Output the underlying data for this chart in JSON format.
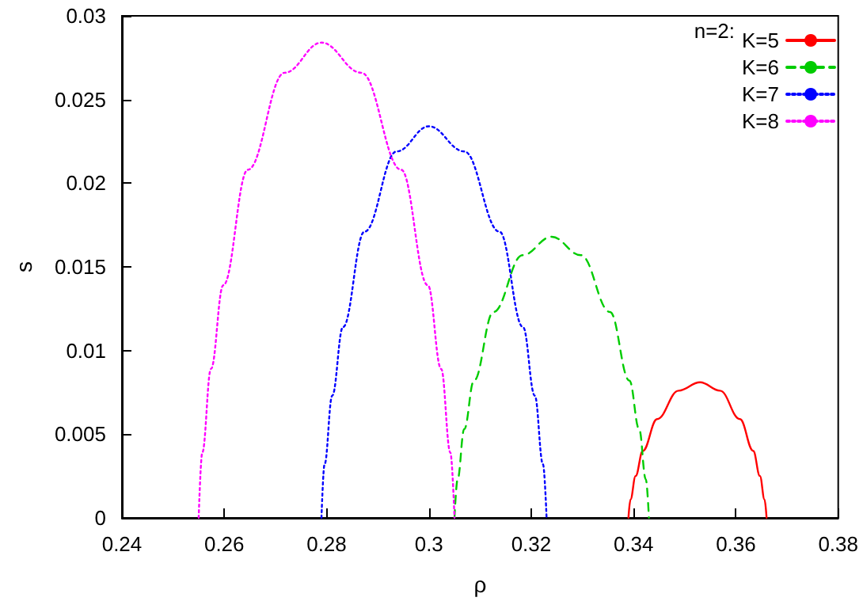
{
  "chart_data": {
    "type": "line",
    "xlabel": "ρ",
    "ylabel": "s",
    "legend_title": "n=2:",
    "legend": "top right",
    "grid": false,
    "marker": "none",
    "xlim": [
      0.24,
      0.38
    ],
    "xticks": [
      0.24,
      0.26,
      0.28,
      0.3,
      0.32,
      0.34,
      0.36,
      0.38
    ],
    "ylim": [
      0,
      0.03
    ],
    "yticks": [
      0,
      0.005,
      0.01,
      0.015,
      0.02,
      0.025,
      0.03
    ],
    "series": [
      {
        "name": "K=5",
        "color": "#ff0000",
        "line_style": "solid",
        "x": [
          0.339,
          0.3394,
          0.3404,
          0.3418,
          0.3446,
          0.3488,
          0.353,
          0.3569,
          0.3608,
          0.3634,
          0.3647,
          0.3656,
          0.366
        ],
        "values": [
          0,
          0.0011,
          0.0025,
          0.004,
          0.0059,
          0.0076,
          0.0081,
          0.0076,
          0.0059,
          0.004,
          0.0025,
          0.0011,
          0
        ]
      },
      {
        "name": "K=6",
        "color": "#00cc00",
        "line_style": "dashed",
        "x": [
          0.305,
          0.3056,
          0.3069,
          0.3088,
          0.3126,
          0.3183,
          0.324,
          0.3297,
          0.3354,
          0.3392,
          0.3411,
          0.3424,
          0.343
        ],
        "values": [
          0,
          0.0023,
          0.0053,
          0.0082,
          0.0123,
          0.0157,
          0.0168,
          0.0157,
          0.0123,
          0.0082,
          0.0053,
          0.0023,
          0
        ]
      },
      {
        "name": "K=7",
        "color": "#0000ff",
        "line_style": "dotted",
        "x": [
          0.279,
          0.2796,
          0.2811,
          0.2832,
          0.2874,
          0.2937,
          0.3,
          0.3069,
          0.3138,
          0.3184,
          0.3207,
          0.3223,
          0.323
        ],
        "values": [
          0,
          0.0032,
          0.0073,
          0.0114,
          0.0171,
          0.0219,
          0.0234,
          0.0219,
          0.0171,
          0.0114,
          0.0073,
          0.0032,
          0
        ]
      },
      {
        "name": "K=8",
        "color": "#ff00ff",
        "line_style": "dotted",
        "x": [
          0.255,
          0.2557,
          0.2574,
          0.2598,
          0.2646,
          0.2718,
          0.279,
          0.2868,
          0.2946,
          0.2998,
          0.3024,
          0.3042,
          0.305
        ],
        "values": [
          0,
          0.0039,
          0.0089,
          0.0139,
          0.0208,
          0.0266,
          0.0284,
          0.0266,
          0.0208,
          0.0139,
          0.0089,
          0.0039,
          0
        ]
      }
    ]
  }
}
